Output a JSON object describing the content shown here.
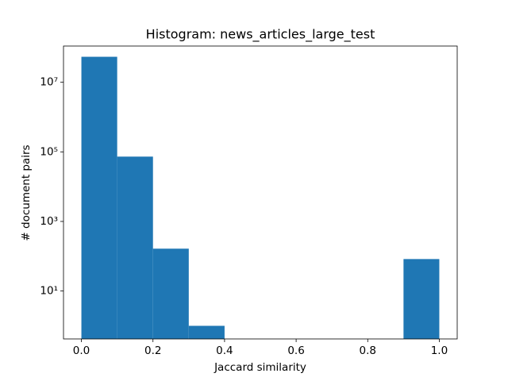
{
  "chart_data": {
    "type": "histogram",
    "title": "Histogram: news_articles_large_test",
    "xlabel": "Jaccard similarity",
    "ylabel": "# document pairs",
    "bins": [
      0,
      0.1,
      0.2,
      0.3,
      0.4,
      0.5,
      0.6,
      0.7,
      0.8,
      0.9,
      1.0
    ],
    "values": [
      54000000,
      73000,
      165,
      1,
      0,
      0,
      0,
      0,
      0,
      83
    ],
    "color": "#1f77b4",
    "xlim": [
      -0.05,
      1.05
    ],
    "ylim": [
      0.42,
      110000000
    ],
    "yscale": "log",
    "xticks": [
      {
        "value": 0,
        "label": "0.0"
      },
      0.2,
      0.4,
      0.6,
      0.8,
      {
        "value": 1,
        "label": "1.0"
      }
    ],
    "yticks": [
      {
        "value": 10,
        "label": "10¹"
      },
      {
        "value": 1000,
        "label": "10³"
      },
      {
        "value": 100000,
        "label": "10⁵"
      },
      {
        "value": 10000000,
        "label": "10⁷"
      }
    ]
  }
}
